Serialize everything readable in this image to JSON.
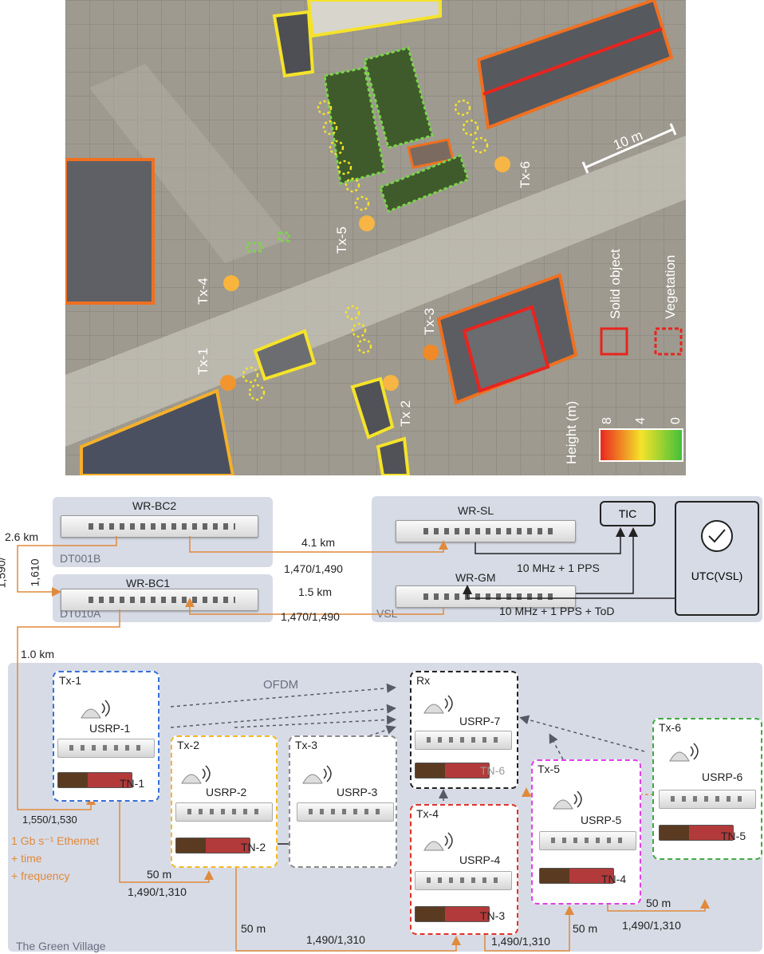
{
  "map": {
    "transmitters": [
      {
        "id": "tx1",
        "label": "Tx-1",
        "color": "#f2952e"
      },
      {
        "id": "tx2",
        "label": "Tx 2",
        "color": "#f6b544"
      },
      {
        "id": "tx3",
        "label": "Tx-3",
        "color": "#ee8a2a"
      },
      {
        "id": "tx4",
        "label": "Tx-4",
        "color": "#f8b43c"
      },
      {
        "id": "tx5",
        "label": "Tx-5",
        "color": "#f6b544"
      },
      {
        "id": "tx6",
        "label": "Tx-6",
        "color": "#f6b544"
      }
    ],
    "scale_label": "10 m",
    "legend": {
      "solid": "Solid object",
      "vegetation": "Vegetation",
      "height_title": "Height (m)",
      "ticks": [
        "8",
        "4",
        "0"
      ]
    },
    "colors": {
      "high": "#e8241f",
      "mid": "#f5e32a",
      "low": "#3fbf3a"
    }
  },
  "network": {
    "panels": {
      "dt001b": "DT001B",
      "dt010a": "DT010A",
      "vsl": "VSL",
      "village": "The Green Village"
    },
    "devices": {
      "wr_bc2": "WR-BC2",
      "wr_bc1": "WR-BC1",
      "wr_sl": "WR-SL",
      "wr_gm": "WR-GM",
      "tic": "TIC",
      "utc": "UTC(VSL)"
    },
    "links": {
      "bc2_sl_dist": "4.1 km",
      "bc2_sl_wl": "1,470/1,490",
      "bc1_gm_dist": "1.5 km",
      "bc1_gm_wl": "1,470/1,490",
      "bc_bc_dist": "2.6 km",
      "bc_bc_wl1": "1,590/",
      "bc_bc_wl2": "1,610",
      "sl_tic": "10 MHz + 1 PPS",
      "gm_utc": "10 MHz + 1 PPS + ToD",
      "bc1_tx1_dist": "1.0 km",
      "tx1_wl": "1,550/1,530",
      "eth1": "1 Gb s⁻¹ Ethernet",
      "eth2": "+ time",
      "eth3": "+ frequency",
      "l1_dist": "50 m",
      "l1_wl": "1,490/1,310",
      "l2_dist": "50 m",
      "l2_wl": "1,490/1,310",
      "l3_dist": "50 m",
      "l3_wl": "1,490/1,310",
      "l4_dist": "50 m",
      "l4_wl": "1,490/1,310",
      "ofdm": "OFDM"
    },
    "nodes": [
      {
        "id": "tx1",
        "title": "Tx-1",
        "usrp": "USRP-1",
        "tn": "TN-1",
        "color": "#3a6fd8"
      },
      {
        "id": "tx2",
        "title": "Tx-2",
        "usrp": "USRP-2",
        "tn": "TN-2",
        "color": "#f0b92a"
      },
      {
        "id": "tx3",
        "title": "Tx-3",
        "usrp": "USRP-3",
        "tn": "",
        "color": "#8a8a8a"
      },
      {
        "id": "rx",
        "title": "Rx",
        "usrp": "USRP-7",
        "tn": "TN-6",
        "color": "#222222"
      },
      {
        "id": "tx4",
        "title": "Tx-4",
        "usrp": "USRP-4",
        "tn": "TN-3",
        "color": "#e0312b"
      },
      {
        "id": "tx5",
        "title": "Tx-5",
        "usrp": "USRP-5",
        "tn": "TN-4",
        "color": "#e040e8"
      },
      {
        "id": "tx6",
        "title": "Tx-6",
        "usrp": "USRP-6",
        "tn": "TN-5",
        "color": "#3faa45"
      }
    ],
    "orange": "#e08a3c"
  }
}
